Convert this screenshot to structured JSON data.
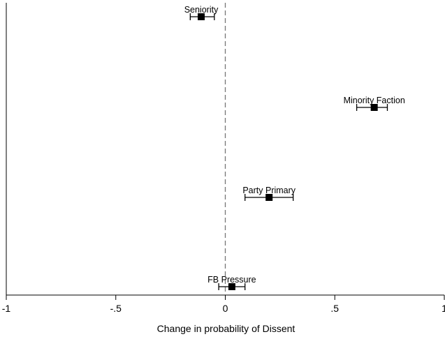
{
  "chart_data": {
    "type": "scatter",
    "title": "",
    "xlabel": "Change in probability of Dissent",
    "ylabel": "",
    "xlim": [
      -1,
      1
    ],
    "xticks": [
      -1,
      -0.5,
      0,
      0.5,
      1
    ],
    "xtick_labels": [
      "-1",
      "-.5",
      "0",
      ".5",
      "1"
    ],
    "reference_line": {
      "x": 0,
      "style": "dashed",
      "color": "#777777"
    },
    "grid": false,
    "marker": "square",
    "marker_color": "#000000",
    "points": [
      {
        "label": "Seniority",
        "estimate": -0.11,
        "ci_low": -0.16,
        "ci_high": -0.05
      },
      {
        "label": "Minority Faction",
        "estimate": 0.68,
        "ci_low": 0.6,
        "ci_high": 0.74
      },
      {
        "label": "Party Primary",
        "estimate": 0.2,
        "ci_low": 0.09,
        "ci_high": 0.31
      },
      {
        "label": "FB Pressure",
        "estimate": 0.03,
        "ci_low": -0.03,
        "ci_high": 0.09
      }
    ]
  }
}
